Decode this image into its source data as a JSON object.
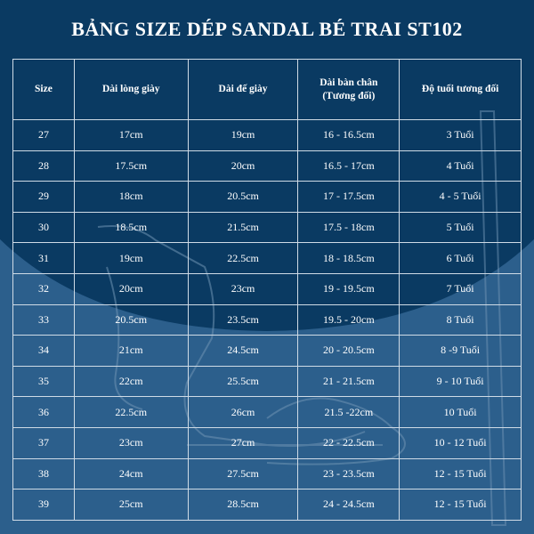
{
  "title": "BẢNG SIZE DÉP SANDAL BÉ TRAI ST102",
  "colors": {
    "background_light": "#2c5f8c",
    "background_dark": "#0a3a62",
    "text": "#ffffff",
    "grid": "#cfdbe6"
  },
  "table": {
    "headers": {
      "size": "Size",
      "insole_length": "Dài lòng giày",
      "sole_length": "Dài đế giày",
      "foot_length_line1": "Dài bàn chân",
      "foot_length_line2": "(Tương đối)",
      "age": "Độ tuổi tương đối"
    },
    "rows": [
      {
        "size": "27",
        "insole": "17cm",
        "sole": "19cm",
        "foot": "16 - 16.5cm",
        "age": "3 Tuổi"
      },
      {
        "size": "28",
        "insole": "17.5cm",
        "sole": "20cm",
        "foot": "16.5 - 17cm",
        "age": "4 Tuổi"
      },
      {
        "size": "29",
        "insole": "18cm",
        "sole": "20.5cm",
        "foot": "17 - 17.5cm",
        "age": "4 - 5 Tuổi"
      },
      {
        "size": "30",
        "insole": "18.5cm",
        "sole": "21.5cm",
        "foot": "17.5 - 18cm",
        "age": "5 Tuổi"
      },
      {
        "size": "31",
        "insole": "19cm",
        "sole": "22.5cm",
        "foot": "18 - 18.5cm",
        "age": "6 Tuổi"
      },
      {
        "size": "32",
        "insole": "20cm",
        "sole": "23cm",
        "foot": "19 - 19.5cm",
        "age": "7 Tuổi"
      },
      {
        "size": "33",
        "insole": "20.5cm",
        "sole": "23.5cm",
        "foot": "19.5 - 20cm",
        "age": "8 Tuổi"
      },
      {
        "size": "34",
        "insole": "21cm",
        "sole": "24.5cm",
        "foot": "20 - 20.5cm",
        "age": "8 -9 Tuổi"
      },
      {
        "size": "35",
        "insole": "22cm",
        "sole": "25.5cm",
        "foot": "21 - 21.5cm",
        "age": "9 - 10 Tuổi"
      },
      {
        "size": "36",
        "insole": "22.5cm",
        "sole": "26cm",
        "foot": "21.5 -22cm",
        "age": "10 Tuổi"
      },
      {
        "size": "37",
        "insole": "23cm",
        "sole": "27cm",
        "foot": "22 - 22.5cm",
        "age": "10 - 12 Tuổi"
      },
      {
        "size": "38",
        "insole": "24cm",
        "sole": "27.5cm",
        "foot": "23 - 23.5cm",
        "age": "12 - 15 Tuổi"
      },
      {
        "size": "39",
        "insole": "25cm",
        "sole": "28.5cm",
        "foot": "24 - 24.5cm",
        "age": "12 - 15 Tuổi"
      }
    ]
  }
}
